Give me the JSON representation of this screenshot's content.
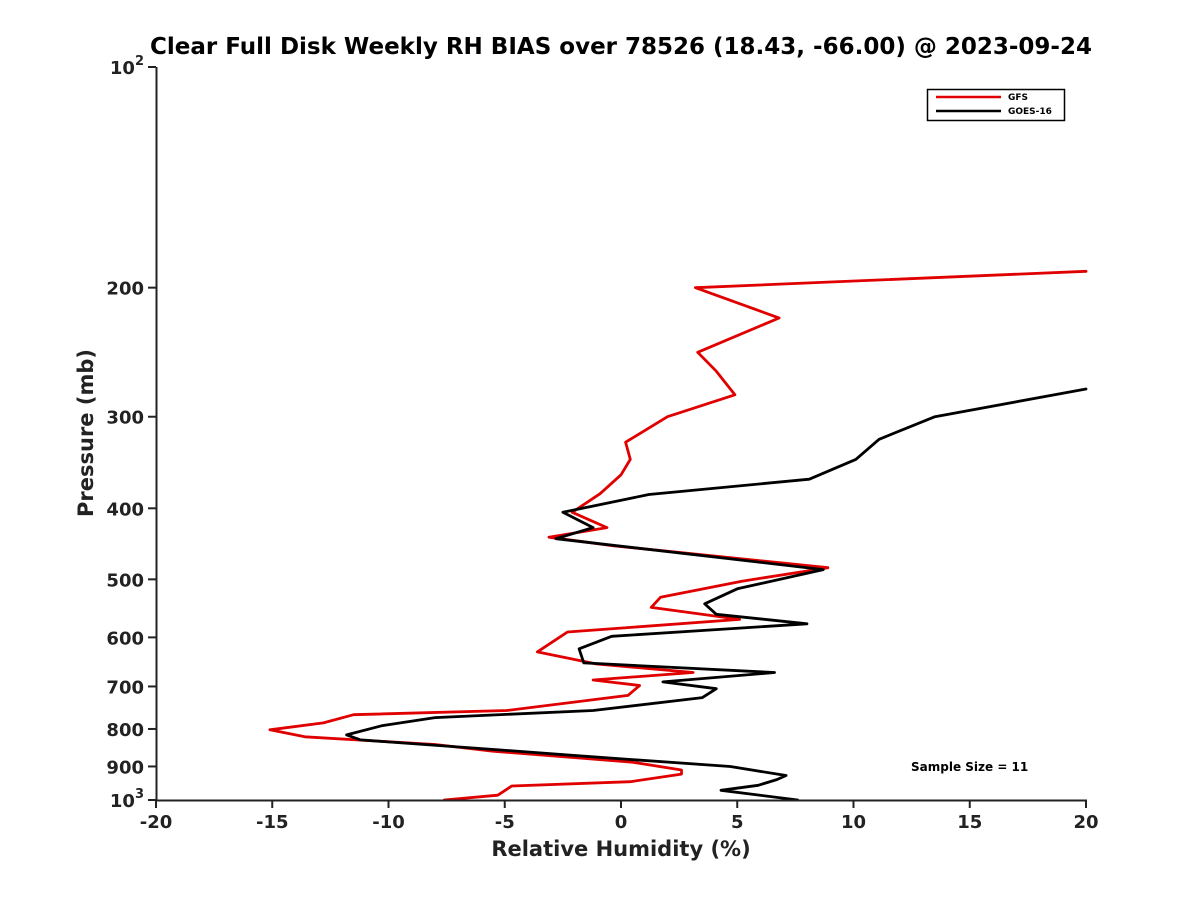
{
  "chart_data": {
    "type": "line",
    "title": "Clear Full Disk Weekly RH BIAS over 78526 (18.43, -66.00) @ 2023-09-24",
    "xlabel": "Relative Humidity (%)",
    "ylabel": "Pressure (mb)",
    "xlim": [
      -20,
      20
    ],
    "ylim": [
      1000,
      100
    ],
    "y_scale": "log",
    "grid": false,
    "legend_position": "top-right",
    "x_ticks": [
      {
        "value": -20,
        "label": "-20"
      },
      {
        "value": -15,
        "label": "-15"
      },
      {
        "value": -10,
        "label": "-10"
      },
      {
        "value": -5,
        "label": "-5"
      },
      {
        "value": 0,
        "label": "0"
      },
      {
        "value": 5,
        "label": "5"
      },
      {
        "value": 10,
        "label": "10"
      },
      {
        "value": 15,
        "label": "15"
      },
      {
        "value": 20,
        "label": "20"
      }
    ],
    "y_ticks": [
      {
        "value": 100,
        "label": "10",
        "sup": "2"
      },
      {
        "value": 200,
        "label": "200"
      },
      {
        "value": 300,
        "label": "300"
      },
      {
        "value": 400,
        "label": "400"
      },
      {
        "value": 500,
        "label": "500"
      },
      {
        "value": 600,
        "label": "600"
      },
      {
        "value": 700,
        "label": "700"
      },
      {
        "value": 800,
        "label": "800"
      },
      {
        "value": 900,
        "label": "900"
      },
      {
        "value": 1000,
        "label": "10",
        "sup": "3"
      }
    ],
    "series": [
      {
        "name": "GFS",
        "color": "#e00000",
        "points": [
          [
            20,
            190
          ],
          [
            3.2,
            200
          ],
          [
            6.8,
            220
          ],
          [
            3.3,
            245
          ],
          [
            4.1,
            260
          ],
          [
            4.9,
            280
          ],
          [
            2.0,
            300
          ],
          [
            0.2,
            325
          ],
          [
            0.4,
            343
          ],
          [
            0,
            360
          ],
          [
            -0.9,
            382
          ],
          [
            -2.1,
            405
          ],
          [
            -0.6,
            425
          ],
          [
            -3.1,
            438
          ],
          [
            -0.3,
            450
          ],
          [
            8.9,
            482
          ],
          [
            5.2,
            503
          ],
          [
            1.7,
            529
          ],
          [
            1.3,
            546
          ],
          [
            5.1,
            567
          ],
          [
            -2.3,
            590
          ],
          [
            -3.6,
            628
          ],
          [
            -1.1,
            652
          ],
          [
            3.1,
            670
          ],
          [
            -1.2,
            686
          ],
          [
            0.8,
            698
          ],
          [
            0.3,
            720
          ],
          [
            -4.9,
            755
          ],
          [
            -11.5,
            765
          ],
          [
            -12.8,
            785
          ],
          [
            -15.1,
            802
          ],
          [
            -13.6,
            820
          ],
          [
            -8.0,
            840
          ],
          [
            -5.5,
            858
          ],
          [
            0.5,
            888
          ],
          [
            2.6,
            910
          ],
          [
            2.6,
            922
          ],
          [
            0.4,
            944
          ],
          [
            -4.7,
            957
          ],
          [
            -5.3,
            985
          ],
          [
            -7.6,
            1000
          ]
        ]
      },
      {
        "name": "GOES-16",
        "color": "#000000",
        "points": [
          [
            20,
            275
          ],
          [
            13.5,
            300
          ],
          [
            11.1,
            322
          ],
          [
            10.1,
            343
          ],
          [
            8.1,
            365
          ],
          [
            1.2,
            383
          ],
          [
            -2.5,
            405
          ],
          [
            -1.2,
            425
          ],
          [
            -2.8,
            440
          ],
          [
            8.7,
            485
          ],
          [
            5.0,
            515
          ],
          [
            3.6,
            540
          ],
          [
            4.1,
            558
          ],
          [
            8.0,
            575
          ],
          [
            -0.4,
            598
          ],
          [
            -1.8,
            622
          ],
          [
            -1.6,
            650
          ],
          [
            6.6,
            670
          ],
          [
            1.8,
            690
          ],
          [
            4.1,
            705
          ],
          [
            3.5,
            725
          ],
          [
            -1.2,
            755
          ],
          [
            -8.0,
            772
          ],
          [
            -10.3,
            792
          ],
          [
            -11.8,
            815
          ],
          [
            -11.2,
            828
          ],
          [
            -5.1,
            855
          ],
          [
            -1.9,
            870
          ],
          [
            4.7,
            900
          ],
          [
            7.1,
            926
          ],
          [
            6.7,
            938
          ],
          [
            5.9,
            955
          ],
          [
            4.3,
            970
          ],
          [
            7.6,
            1000
          ]
        ]
      }
    ],
    "annotations": [
      {
        "text": "Sample Size = 11"
      }
    ]
  }
}
